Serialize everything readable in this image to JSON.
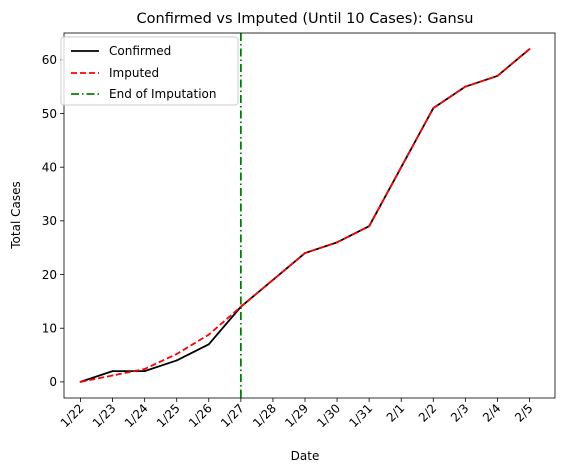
{
  "chart_data": {
    "type": "line",
    "title": "Confirmed vs Imputed (Until 10 Cases): Gansu",
    "xlabel": "Date",
    "ylabel": "Total Cases",
    "categories": [
      "1/22",
      "1/23",
      "1/24",
      "1/25",
      "1/26",
      "1/27",
      "1/28",
      "1/29",
      "1/30",
      "1/31",
      "2/1",
      "2/2",
      "2/3",
      "2/4",
      "2/5"
    ],
    "ylim": [
      -3,
      65
    ],
    "yticks": [
      0,
      10,
      20,
      30,
      40,
      50,
      60
    ],
    "grid": false,
    "legend_position": "top-left",
    "series": [
      {
        "name": "Confirmed",
        "color": "#000000",
        "style": "solid",
        "values": [
          0,
          2,
          2,
          4,
          7,
          14,
          19,
          24,
          26,
          29,
          40,
          51,
          55,
          57,
          62
        ]
      },
      {
        "name": "Imputed",
        "color": "#ff0000",
        "style": "dashed",
        "values": [
          0,
          1.2,
          2.4,
          5.2,
          8.8,
          14,
          19,
          24,
          26,
          29,
          40,
          51,
          55,
          57,
          62
        ]
      }
    ],
    "vline": {
      "name": "End of Imputation",
      "color": "#008000",
      "style": "dashdot",
      "x": "1/27"
    }
  }
}
